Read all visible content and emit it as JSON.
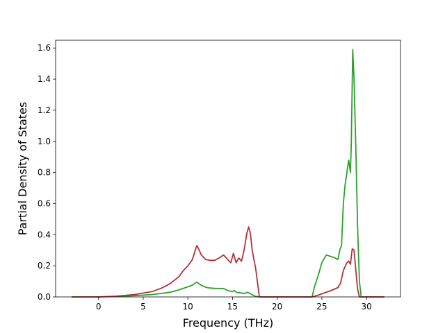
{
  "chart_data": {
    "type": "line",
    "title": "",
    "xlabel": "Frequency (THz)",
    "ylabel": "Partial Density of States",
    "xlim": [
      -4.8,
      33.8
    ],
    "ylim": [
      0,
      1.65
    ],
    "xticks": [
      0,
      5,
      10,
      15,
      20,
      25,
      30
    ],
    "yticks": [
      0.0,
      0.2,
      0.4,
      0.6,
      0.8,
      1.0,
      1.2,
      1.4,
      1.6
    ],
    "grid": false,
    "legend": "none",
    "series": [
      {
        "color": "#2ca02c",
        "points": [
          [
            -3,
            0
          ],
          [
            0,
            0
          ],
          [
            2,
            0.003
          ],
          [
            4,
            0.008
          ],
          [
            6,
            0.015
          ],
          [
            8,
            0.03
          ],
          [
            9,
            0.045
          ],
          [
            10,
            0.065
          ],
          [
            10.5,
            0.075
          ],
          [
            11,
            0.095
          ],
          [
            11.5,
            0.075
          ],
          [
            12,
            0.062
          ],
          [
            12.5,
            0.057
          ],
          [
            13,
            0.055
          ],
          [
            14,
            0.054
          ],
          [
            14.5,
            0.04
          ],
          [
            15,
            0.035
          ],
          [
            15.2,
            0.04
          ],
          [
            15.5,
            0.028
          ],
          [
            16,
            0.026
          ],
          [
            16.3,
            0.022
          ],
          [
            16.7,
            0.03
          ],
          [
            17,
            0.02
          ],
          [
            17.5,
            0.005
          ],
          [
            18,
            0
          ],
          [
            23.9,
            0
          ],
          [
            24.2,
            0.07
          ],
          [
            24.6,
            0.14
          ],
          [
            25,
            0.22
          ],
          [
            25.5,
            0.27
          ],
          [
            26,
            0.26
          ],
          [
            26.5,
            0.25
          ],
          [
            26.8,
            0.24
          ],
          [
            27,
            0.3
          ],
          [
            27.2,
            0.33
          ],
          [
            27.4,
            0.6
          ],
          [
            27.6,
            0.72
          ],
          [
            28,
            0.88
          ],
          [
            28.2,
            0.8
          ],
          [
            28.3,
            1.0
          ],
          [
            28.45,
            1.59
          ],
          [
            28.6,
            1.4
          ],
          [
            28.8,
            0.95
          ],
          [
            29.0,
            0.45
          ],
          [
            29.2,
            0.1
          ],
          [
            29.4,
            0
          ],
          [
            32,
            0
          ]
        ]
      },
      {
        "color": "#b5303a",
        "points": [
          [
            -3,
            0
          ],
          [
            0,
            0
          ],
          [
            2,
            0.005
          ],
          [
            4,
            0.015
          ],
          [
            6,
            0.035
          ],
          [
            7,
            0.055
          ],
          [
            8,
            0.085
          ],
          [
            9,
            0.13
          ],
          [
            9.5,
            0.17
          ],
          [
            10,
            0.2
          ],
          [
            10.5,
            0.24
          ],
          [
            11,
            0.33
          ],
          [
            11.2,
            0.31
          ],
          [
            11.5,
            0.27
          ],
          [
            12,
            0.24
          ],
          [
            12.5,
            0.235
          ],
          [
            13,
            0.235
          ],
          [
            13.5,
            0.25
          ],
          [
            14,
            0.27
          ],
          [
            14.3,
            0.25
          ],
          [
            14.8,
            0.22
          ],
          [
            15.1,
            0.28
          ],
          [
            15.4,
            0.22
          ],
          [
            15.7,
            0.25
          ],
          [
            16,
            0.23
          ],
          [
            16.3,
            0.3
          ],
          [
            16.6,
            0.41
          ],
          [
            16.8,
            0.45
          ],
          [
            17,
            0.41
          ],
          [
            17.2,
            0.3
          ],
          [
            17.6,
            0.18
          ],
          [
            18,
            0
          ],
          [
            23.9,
            0
          ],
          [
            24.5,
            0.01
          ],
          [
            25,
            0.02
          ],
          [
            26,
            0.04
          ],
          [
            26.8,
            0.06
          ],
          [
            27.1,
            0.09
          ],
          [
            27.4,
            0.17
          ],
          [
            27.8,
            0.22
          ],
          [
            28.0,
            0.23
          ],
          [
            28.2,
            0.21
          ],
          [
            28.4,
            0.31
          ],
          [
            28.6,
            0.3
          ],
          [
            28.8,
            0.17
          ],
          [
            29.0,
            0.05
          ],
          [
            29.2,
            0
          ],
          [
            32,
            0
          ]
        ]
      }
    ]
  }
}
